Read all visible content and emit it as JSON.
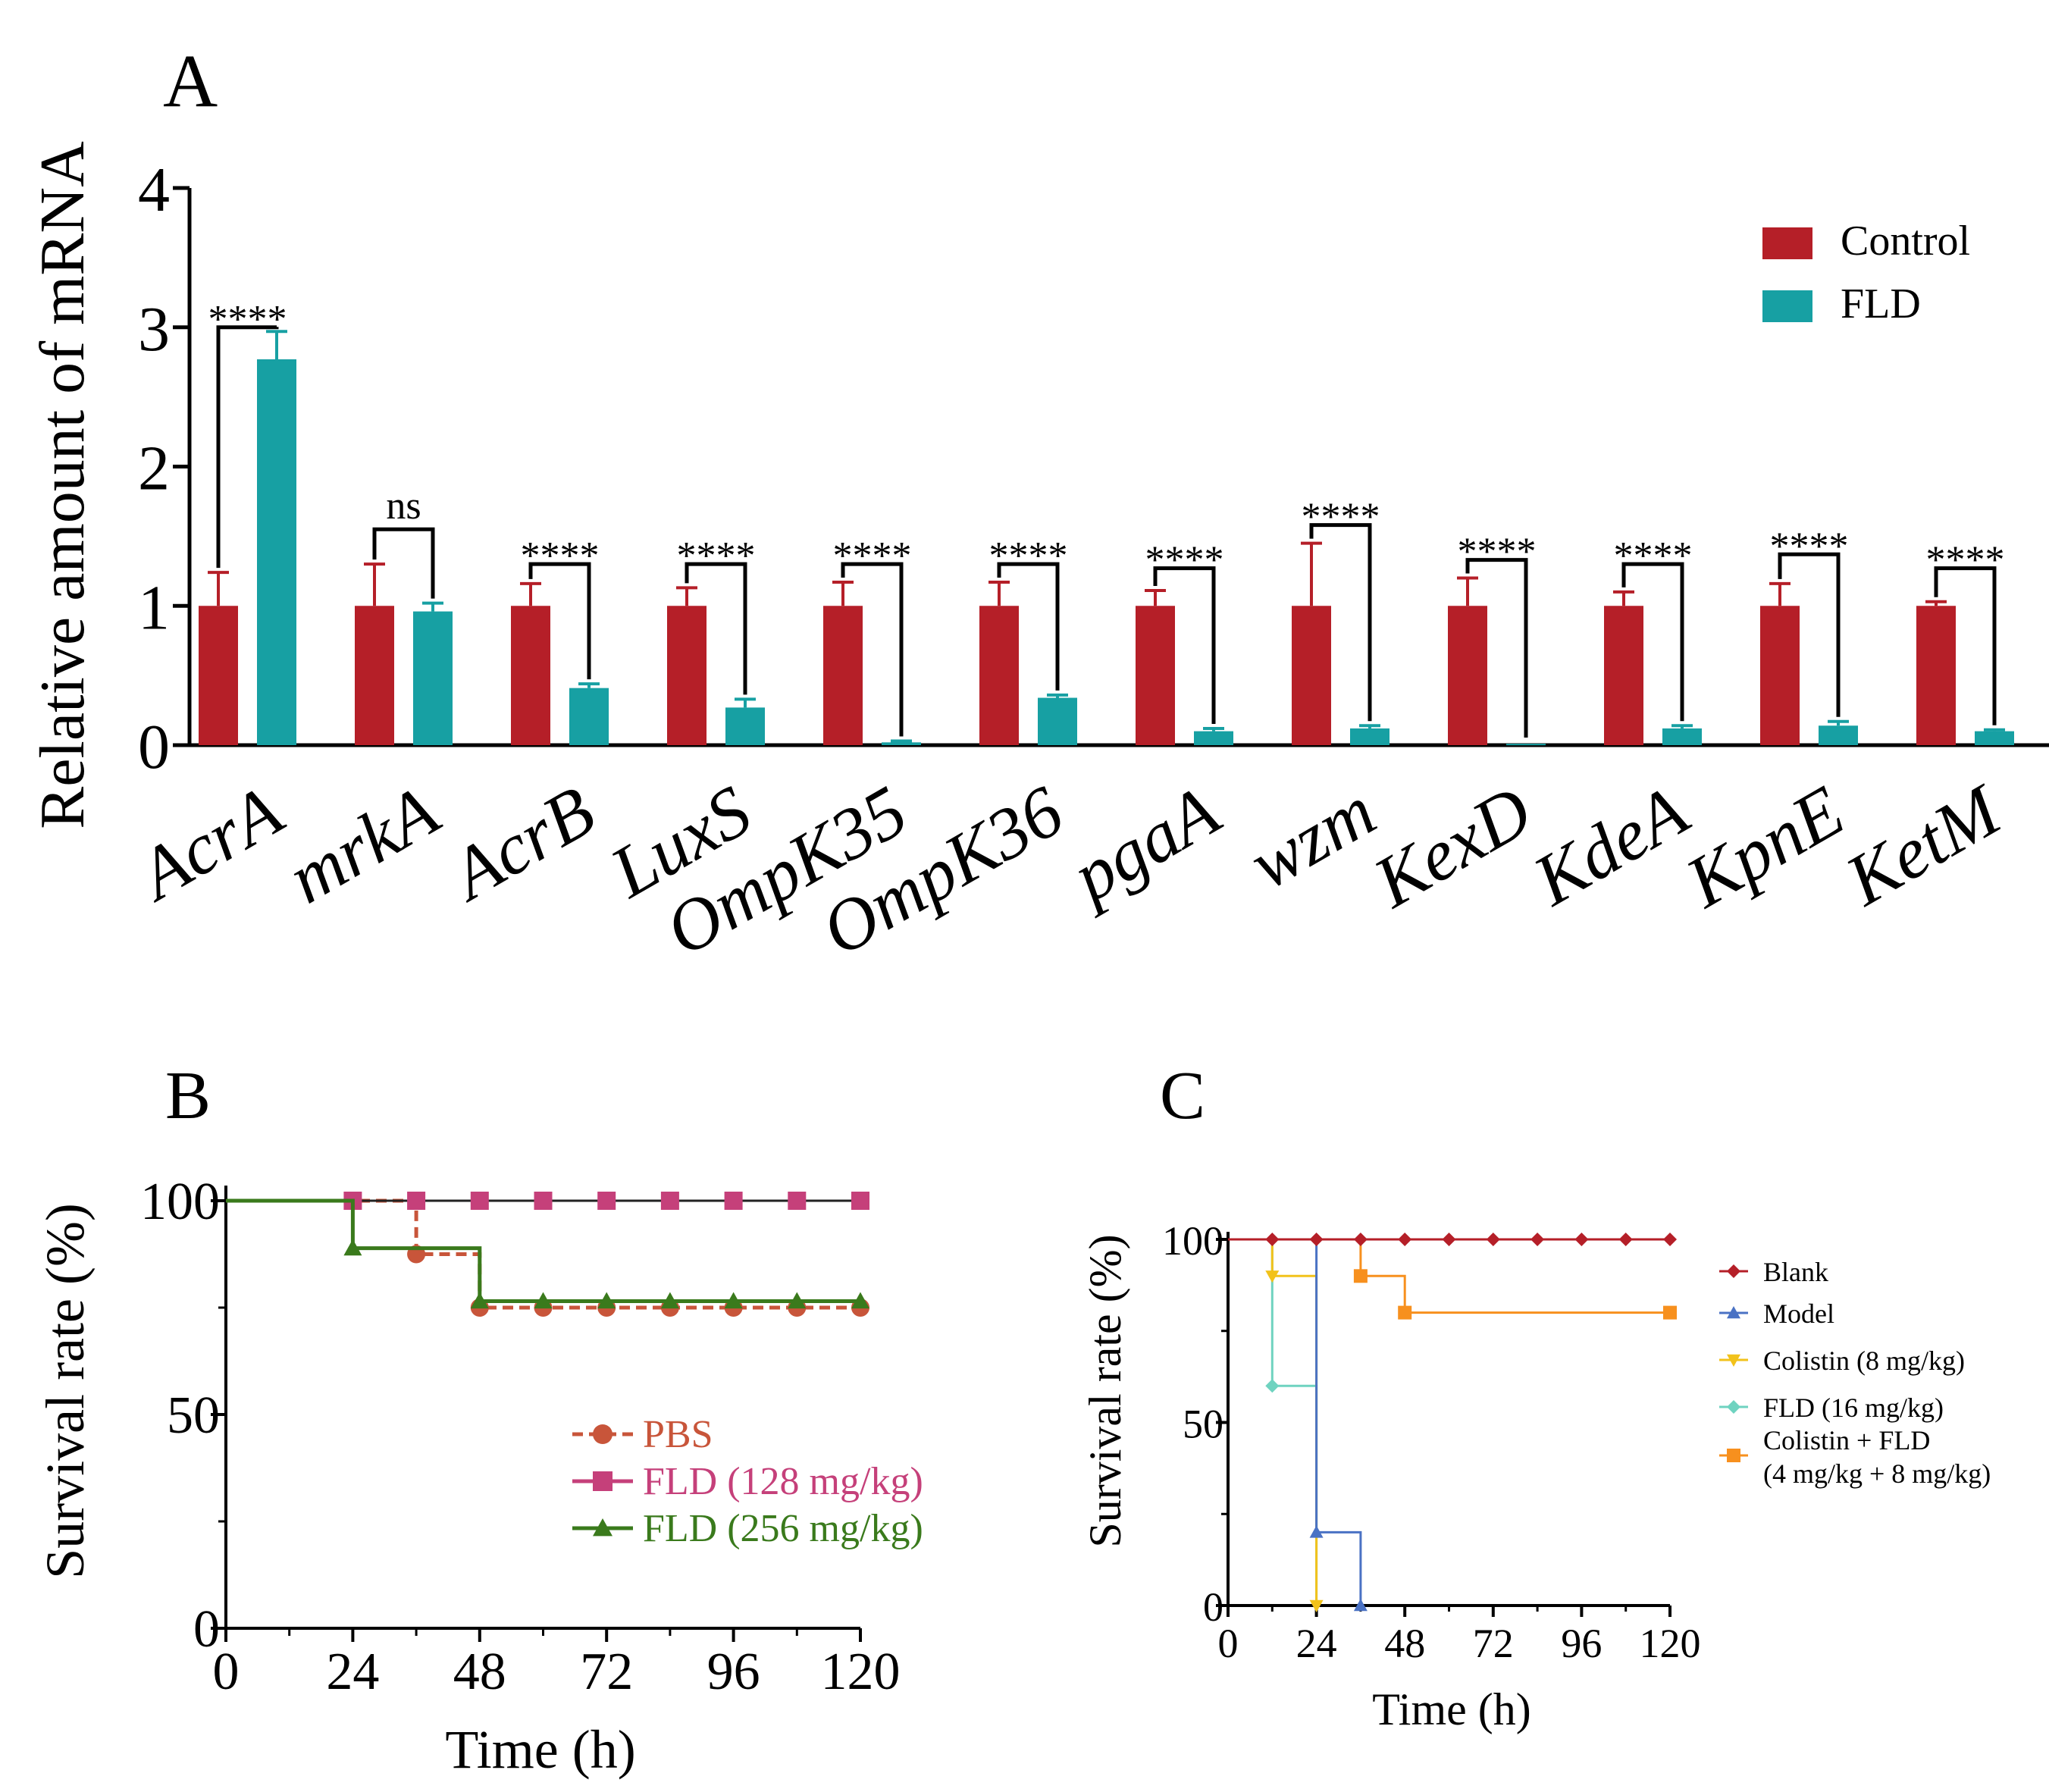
{
  "colors": {
    "control": "#B51F28",
    "fld": "#17A0A3",
    "pbs": "#C8553A",
    "fld128": "#C5407A",
    "fld256": "#3A7A1C",
    "blank": "#B51F28",
    "model": "#4A72C4",
    "colistin": "#F2C21B",
    "fld16": "#6FD3C0",
    "combo": "#F7901E"
  },
  "chart_data": [
    {
      "panel": "A",
      "type": "bar",
      "title": "",
      "ylabel": "Relative amount of mRNA",
      "xlabel": "",
      "ylim": [
        0,
        4
      ],
      "yticks": [
        "0",
        "1",
        "2",
        "3",
        "4"
      ],
      "legend": "top-right",
      "categories": [
        "AcrA",
        "mrkA",
        "AcrB",
        "LuxS",
        "OmpK35",
        "OmpK36",
        "pgaA",
        "wzm",
        "KexD",
        "KdeA",
        "KpnE",
        "KetM"
      ],
      "series": [
        {
          "name": "Control",
          "values": [
            1,
            1,
            1,
            1,
            1,
            1,
            1,
            1,
            1,
            1,
            1,
            1
          ],
          "errors": [
            0.24,
            0.3,
            0.16,
            0.13,
            0.17,
            0.17,
            0.11,
            0.45,
            0.2,
            0.1,
            0.16,
            0.03
          ]
        },
        {
          "name": "FLD",
          "values": [
            2.77,
            0.96,
            0.41,
            0.27,
            0.02,
            0.34,
            0.1,
            0.12,
            0.01,
            0.12,
            0.14,
            0.1
          ],
          "errors": [
            0.2,
            0.06,
            0.03,
            0.06,
            0.01,
            0.02,
            0.02,
            0.02,
            0.0,
            0.02,
            0.03,
            0.01
          ]
        }
      ],
      "significance": [
        "****",
        "ns",
        "****",
        "****",
        "****",
        "****",
        "****",
        "****",
        "****",
        "****",
        "****",
        "****"
      ],
      "sig_bracket_level": [
        3.0,
        1.55,
        1.3,
        1.3,
        1.3,
        1.3,
        1.27,
        1.58,
        1.33,
        1.3,
        1.37,
        1.27
      ]
    },
    {
      "panel": "B",
      "type": "line",
      "subtype": "survival-step",
      "xlabel": "Time (h)",
      "ylabel": "Survival rate (%)",
      "xlim": [
        0,
        120
      ],
      "ylim": [
        0,
        100
      ],
      "xticks": [
        "0",
        "24",
        "48",
        "72",
        "96",
        "120"
      ],
      "yticks": [
        "0",
        "50",
        "100"
      ],
      "legend": "center-right",
      "series": [
        {
          "name": "PBS",
          "steps": [
            [
              0,
              100
            ],
            [
              36,
              87.5
            ],
            [
              48,
              75
            ],
            [
              120,
              75
            ]
          ],
          "markers": [
            [
              36,
              87.5
            ],
            [
              48,
              75
            ],
            [
              60,
              75
            ],
            [
              72,
              75
            ],
            [
              84,
              75
            ],
            [
              96,
              75
            ],
            [
              108,
              75
            ],
            [
              120,
              75
            ]
          ]
        },
        {
          "name": "FLD (128 mg/kg)",
          "steps": [
            [
              0,
              100
            ],
            [
              120,
              100
            ]
          ],
          "markers": [
            [
              24,
              100
            ],
            [
              36,
              100
            ],
            [
              48,
              100
            ],
            [
              60,
              100
            ],
            [
              72,
              100
            ],
            [
              84,
              100
            ],
            [
              96,
              100
            ],
            [
              108,
              100
            ],
            [
              120,
              100
            ]
          ]
        },
        {
          "name": "FLD (256 mg/kg)",
          "steps": [
            [
              0,
              100
            ],
            [
              24,
              88.9
            ],
            [
              48,
              76.5
            ],
            [
              120,
              76.5
            ]
          ],
          "markers": [
            [
              24,
              88.9
            ],
            [
              48,
              76.5
            ],
            [
              60,
              76.5
            ],
            [
              72,
              76.5
            ],
            [
              84,
              76.5
            ],
            [
              96,
              76.5
            ],
            [
              108,
              76.5
            ],
            [
              120,
              76.5
            ]
          ]
        }
      ]
    },
    {
      "panel": "C",
      "type": "line",
      "subtype": "survival-step",
      "xlabel": "Time (h)",
      "ylabel": "Survival rate (%)",
      "xlim": [
        0,
        120
      ],
      "ylim": [
        0,
        100
      ],
      "xticks": [
        "0",
        "24",
        "48",
        "72",
        "96",
        "120"
      ],
      "yticks": [
        "0",
        "50",
        "100"
      ],
      "legend": "right",
      "series": [
        {
          "name": "Blank",
          "steps": [
            [
              0,
              100
            ],
            [
              120,
              100
            ]
          ],
          "markers": [
            [
              12,
              100
            ],
            [
              24,
              100
            ],
            [
              36,
              100
            ],
            [
              48,
              100
            ],
            [
              60,
              100
            ],
            [
              72,
              100
            ],
            [
              84,
              100
            ],
            [
              96,
              100
            ],
            [
              108,
              100
            ],
            [
              120,
              100
            ]
          ]
        },
        {
          "name": "Model",
          "steps": [
            [
              0,
              100
            ],
            [
              24,
              20
            ],
            [
              36,
              0
            ]
          ],
          "markers": [
            [
              24,
              20
            ],
            [
              36,
              0
            ]
          ]
        },
        {
          "name": "Colistin (8 mg/kg)",
          "steps": [
            [
              0,
              100
            ],
            [
              12,
              90
            ],
            [
              24,
              0
            ]
          ],
          "markers": [
            [
              12,
              90
            ],
            [
              24,
              0
            ]
          ]
        },
        {
          "name": "FLD (16 mg/kg)",
          "steps": [
            [
              0,
              100
            ],
            [
              12,
              60
            ],
            [
              24,
              0
            ]
          ],
          "markers": [
            [
              12,
              60
            ]
          ]
        },
        {
          "name": "Colistin + FLD (4 mg/kg + 8 mg/kg)",
          "legend_lines": [
            "Colistin + FLD",
            "(4 mg/kg + 8 mg/kg)"
          ],
          "steps": [
            [
              0,
              100
            ],
            [
              36,
              90
            ],
            [
              48,
              80
            ],
            [
              120,
              80
            ]
          ],
          "markers": [
            [
              36,
              90
            ],
            [
              48,
              80
            ],
            [
              120,
              80
            ]
          ]
        }
      ]
    }
  ],
  "panels": {
    "a_label": "A",
    "b_label": "B",
    "c_label": "C"
  }
}
